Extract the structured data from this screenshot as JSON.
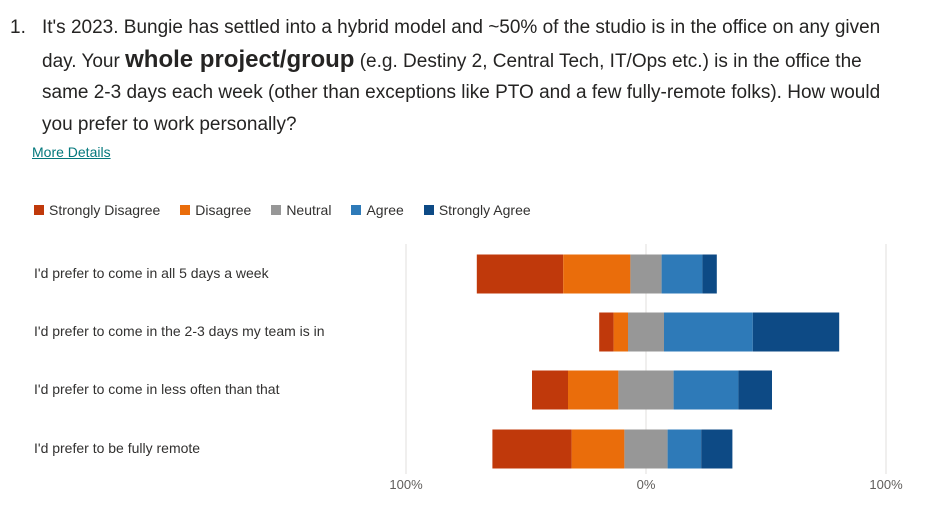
{
  "question": {
    "number": "1.",
    "text_before": "It's 2023.  Bungie has settled into a hybrid model and ~50% of the studio is in the office on any given day. Your ",
    "text_bold": "whole project/group",
    "text_after": " (e.g. Destiny 2, Central Tech, IT/Ops etc.) is in the office the same 2-3 days each week (other than exceptions like PTO and a few fully-remote folks).  How would you prefer to work personally?"
  },
  "details_link": "More Details",
  "chart_data": {
    "type": "bar",
    "orientation": "horizontal",
    "stacked": "diverging",
    "categories": [
      "I'd prefer to come in all 5 days a week",
      "I'd prefer to come in the 2-3 days my team is in",
      "I'd prefer to come in less often than that",
      "I'd prefer to be fully remote"
    ],
    "series": [
      {
        "name": "Strongly Disagree",
        "color": "#c0390b",
        "values": [
          36,
          6,
          15,
          33
        ]
      },
      {
        "name": "Disagree",
        "color": "#ea6d0b",
        "values": [
          28,
          6,
          21,
          22
        ]
      },
      {
        "name": "Neutral",
        "color": "#979797",
        "values": [
          13,
          15,
          23,
          18
        ]
      },
      {
        "name": "Agree",
        "color": "#2e7ab8",
        "values": [
          17,
          37,
          27,
          14
        ]
      },
      {
        "name": "Strongly Agree",
        "color": "#0d4a85",
        "values": [
          6,
          36,
          14,
          13
        ]
      }
    ],
    "xlim": [
      -100,
      100
    ],
    "tick_labels": [
      "100%",
      "0%",
      "100%"
    ],
    "legend_position": "top-left",
    "grid": true
  }
}
